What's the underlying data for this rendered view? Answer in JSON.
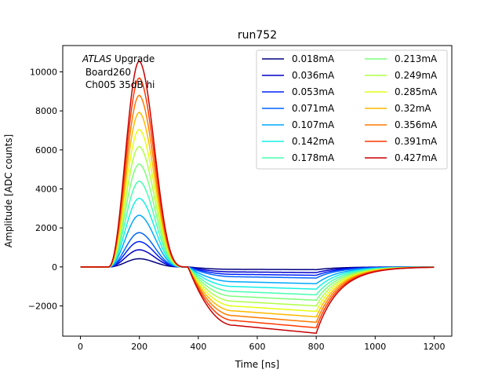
{
  "chart_data": {
    "type": "line",
    "title": "run752",
    "xlabel": "Time [ns]",
    "ylabel": "Amplitude [ADC counts]",
    "xlim": [
      -60,
      1260
    ],
    "ylim": [
      -3550,
      11350
    ],
    "xticks": [
      0,
      200,
      400,
      600,
      800,
      1000,
      1200
    ],
    "yticks": [
      -2000,
      0,
      2000,
      4000,
      6000,
      8000,
      10000
    ],
    "xtick_labels": [
      "0",
      "200",
      "400",
      "600",
      "800",
      "1000",
      "1200"
    ],
    "ytick_labels": [
      "−2000",
      "0",
      "2000",
      "4000",
      "6000",
      "8000",
      "10000"
    ],
    "grid": false,
    "legend": {
      "placement": "top-right",
      "columns": 2
    },
    "annotation": {
      "line1_italic": "ATLAS",
      "line1_rest": " Upgrade",
      "line2": " Board260",
      "line3": " Ch005 35dB hi"
    },
    "series": [
      {
        "name": "0.018mA",
        "color": "#00007f",
        "peak": 420,
        "trough": -140
      },
      {
        "name": "0.036mA",
        "color": "#0000c9",
        "peak": 880,
        "trough": -290
      },
      {
        "name": "0.053mA",
        "color": "#0020ff",
        "peak": 1300,
        "trough": -430
      },
      {
        "name": "0.071mA",
        "color": "#0064ff",
        "peak": 1760,
        "trough": -570
      },
      {
        "name": "0.107mA",
        "color": "#00a8ff",
        "peak": 2650,
        "trough": -860
      },
      {
        "name": "0.142mA",
        "color": "#14f0e3",
        "peak": 3520,
        "trough": -1140
      },
      {
        "name": "0.178mA",
        "color": "#47ffb0",
        "peak": 4400,
        "trough": -1430
      },
      {
        "name": "0.213mA",
        "color": "#7dff7a",
        "peak": 5280,
        "trough": -1710
      },
      {
        "name": "0.249mA",
        "color": "#b0ff47",
        "peak": 6180,
        "trough": -2000
      },
      {
        "name": "0.285mA",
        "color": "#e3ff13",
        "peak": 7050,
        "trough": -2280
      },
      {
        "name": "0.32mA",
        "color": "#ffb900",
        "peak": 7930,
        "trough": -2560
      },
      {
        "name": "0.356mA",
        "color": "#ff7a00",
        "peak": 8800,
        "trough": -2840
      },
      {
        "name": "0.391mA",
        "color": "#ff3700",
        "peak": 9690,
        "trough": -3120
      },
      {
        "name": "0.427mA",
        "color": "#c80000",
        "peak": 10560,
        "trough": -3400
      }
    ]
  }
}
